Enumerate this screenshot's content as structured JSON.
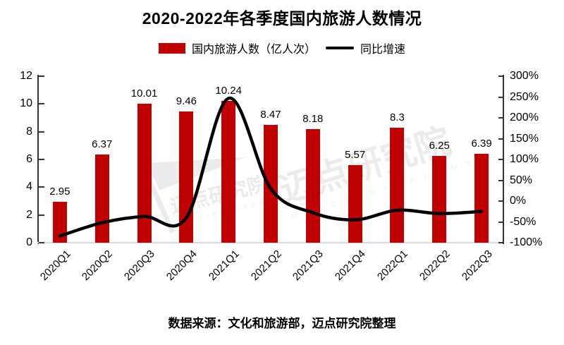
{
  "title": "2020-2022年各季度国内旅游人数情况",
  "legend": [
    {
      "label": "国内旅游人数（亿人次）",
      "type": "bar"
    },
    {
      "label": "同比增速",
      "type": "line"
    }
  ],
  "source_note": "数据来源：文化和旅游部，迈点研究院整理",
  "watermark": {
    "text": "迈点研究院",
    "caption": "M E I D I A N   A C A D E M Y"
  },
  "colors": {
    "bar": "#c00000",
    "line": "#000000",
    "axis": "#333333",
    "baseline": "#d9d9d9",
    "text": "#000000",
    "watermark": "#d9d9d9"
  },
  "chart_data": {
    "type": "combo",
    "title": "2020-2022年各季度国内旅游人数情况",
    "categories": [
      "2020Q1",
      "2020Q2",
      "2020Q3",
      "2020Q4",
      "2021Q1",
      "2021Q2",
      "2021Q3",
      "2021Q4",
      "2022Q1",
      "2022Q2",
      "2022Q3"
    ],
    "series": [
      {
        "name": "国内旅游人数（亿人次）",
        "type": "bar",
        "axis": "left",
        "values": [
          2.95,
          6.37,
          10.01,
          9.46,
          10.24,
          8.47,
          8.18,
          5.57,
          8.3,
          6.25,
          6.39
        ],
        "labels": [
          "2.95",
          "6.37",
          "10.01",
          "9.46",
          "10.24",
          "8.47",
          "8.18",
          "5.57",
          "8.3",
          "6.25",
          "6.39"
        ]
      },
      {
        "name": "同比增速",
        "type": "line",
        "axis": "right",
        "values_estimated_pct": [
          -84,
          -52,
          -37,
          -40,
          247,
          30,
          -28,
          -45,
          -22,
          -30,
          -25
        ]
      }
    ],
    "left_axis": {
      "range": [
        0,
        12
      ],
      "ticks": [
        {
          "label": "12",
          "value": 12
        },
        {
          "label": "10",
          "value": 10
        },
        {
          "label": "8",
          "value": 8
        },
        {
          "label": "6",
          "value": 6
        },
        {
          "label": "4",
          "value": 4
        },
        {
          "label": "2",
          "value": 2
        },
        {
          "label": "0",
          "value": 0
        }
      ]
    },
    "right_axis": {
      "range": [
        -100,
        300
      ],
      "ticks": [
        {
          "label": "300%",
          "value": 300
        },
        {
          "label": "250%",
          "value": 250
        },
        {
          "label": "200%",
          "value": 200
        },
        {
          "label": "150%",
          "value": 150
        },
        {
          "label": "100%",
          "value": 100
        },
        {
          "label": "50%",
          "value": 50
        },
        {
          "label": "0%",
          "value": 0
        },
        {
          "label": "-50%",
          "value": -50
        },
        {
          "label": "-100%",
          "value": -100
        }
      ]
    },
    "grid": false,
    "legend_position": "top",
    "smoothed_line": true
  }
}
